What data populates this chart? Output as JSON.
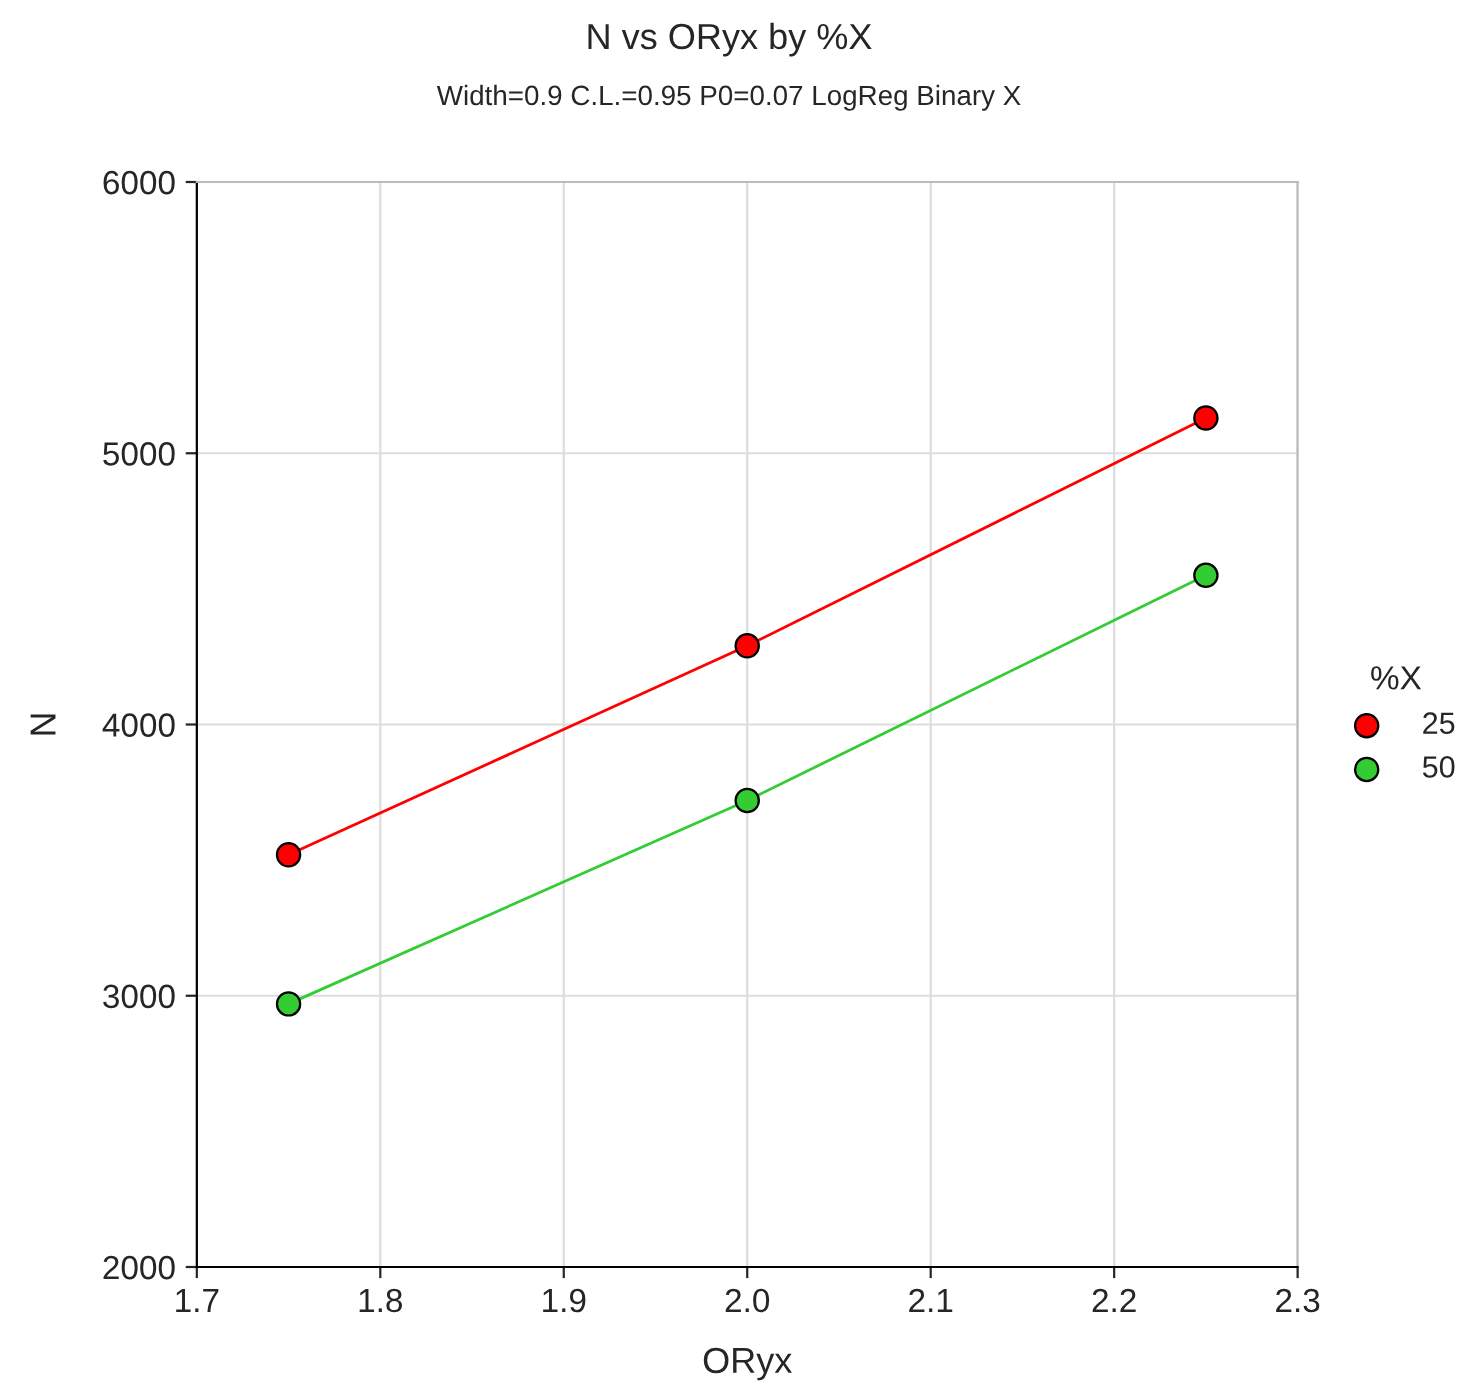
{
  "chart_data": {
    "type": "line",
    "title": "N vs ORyx by %X",
    "subtitle": "Width=0.9 C.L.=0.95 P0=0.07 LogReg Binary X",
    "xlabel": "ORyx",
    "ylabel": "N",
    "legend_title": "%X",
    "x": [
      1.75,
      2.0,
      2.25
    ],
    "series": [
      {
        "name": "25",
        "color": "#ff0000",
        "values": [
          3520,
          4290,
          5130
        ]
      },
      {
        "name": "50",
        "color": "#33cc33",
        "values": [
          2970,
          3720,
          4550
        ]
      }
    ],
    "xlim": [
      1.7,
      2.3
    ],
    "xticks": [
      1.7,
      1.8,
      1.9,
      {
        "value": 2,
        "label": "2.0"
      },
      2.1,
      2.2,
      2.3
    ],
    "ylim": [
      2000,
      6000
    ],
    "yticks": [
      2000,
      3000,
      4000,
      5000,
      6000
    ],
    "grid": true,
    "legend": "right",
    "marker": "circle",
    "line_style": "solid"
  }
}
